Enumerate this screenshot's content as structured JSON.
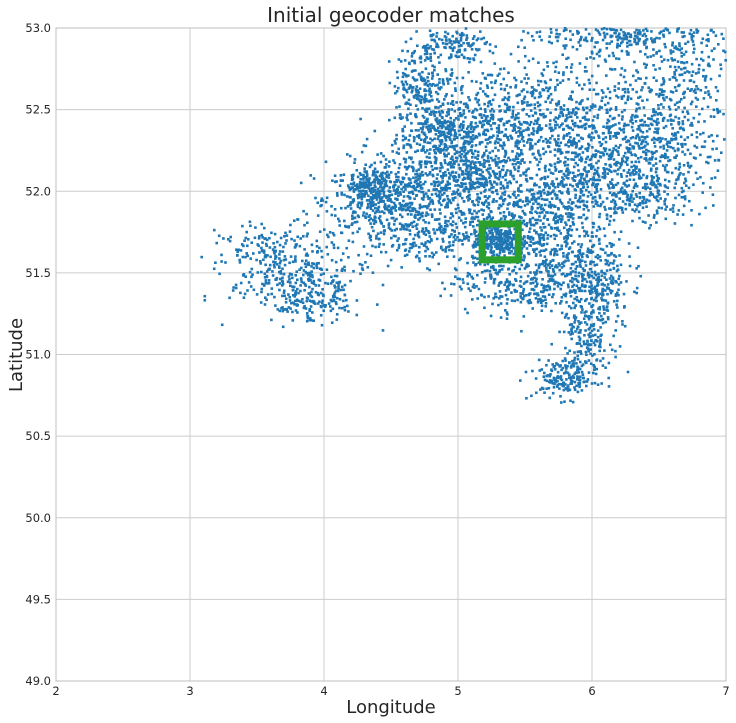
{
  "chart_data": {
    "type": "scatter",
    "title": "Initial geocoder matches",
    "xlabel": "Longitude",
    "ylabel": "Latitude",
    "xlim": [
      2,
      7
    ],
    "ylim": [
      49.0,
      53.0
    ],
    "xticks": [
      2,
      3,
      4,
      5,
      6,
      7
    ],
    "xtick_labels": [
      "2",
      "3",
      "4",
      "5",
      "6",
      "7"
    ],
    "yticks": [
      49.0,
      49.5,
      50.0,
      50.5,
      51.0,
      51.5,
      52.0,
      52.5,
      53.0
    ],
    "ytick_labels": [
      "49.0",
      "49.5",
      "50.0",
      "50.5",
      "51.0",
      "51.5",
      "52.0",
      "52.5",
      "53.0"
    ],
    "grid": true,
    "legend": false,
    "point_color": "#1f77b4",
    "highlight_color": "#2ca02c",
    "highlight_box": {
      "x0": 5.18,
      "x1": 5.45,
      "y0": 51.58,
      "y1": 51.8
    },
    "clusters": [
      {
        "cx": 4.9,
        "cy": 52.35,
        "sx": 0.18,
        "sy": 0.08,
        "n": 320
      },
      {
        "cx": 4.4,
        "cy": 51.95,
        "sx": 0.2,
        "sy": 0.1,
        "n": 360
      },
      {
        "cx": 4.8,
        "cy": 52.05,
        "sx": 0.3,
        "sy": 0.12,
        "n": 380
      },
      {
        "cx": 5.15,
        "cy": 52.08,
        "sx": 0.18,
        "sy": 0.1,
        "n": 260
      },
      {
        "cx": 4.75,
        "cy": 51.75,
        "sx": 0.3,
        "sy": 0.1,
        "n": 320
      },
      {
        "cx": 5.3,
        "cy": 51.7,
        "sx": 0.1,
        "sy": 0.07,
        "n": 260
      },
      {
        "cx": 5.55,
        "cy": 51.8,
        "sx": 0.22,
        "sy": 0.12,
        "n": 300
      },
      {
        "cx": 5.45,
        "cy": 51.45,
        "sx": 0.25,
        "sy": 0.1,
        "n": 300
      },
      {
        "cx": 5.9,
        "cy": 51.55,
        "sx": 0.18,
        "sy": 0.12,
        "n": 240
      },
      {
        "cx": 6.05,
        "cy": 51.35,
        "sx": 0.12,
        "sy": 0.12,
        "n": 160
      },
      {
        "cx": 5.95,
        "cy": 51.1,
        "sx": 0.1,
        "sy": 0.12,
        "n": 150
      },
      {
        "cx": 5.8,
        "cy": 50.85,
        "sx": 0.12,
        "sy": 0.06,
        "n": 160
      },
      {
        "cx": 3.8,
        "cy": 51.45,
        "sx": 0.25,
        "sy": 0.1,
        "n": 240
      },
      {
        "cx": 3.9,
        "cy": 51.3,
        "sx": 0.15,
        "sy": 0.05,
        "n": 100
      },
      {
        "cx": 3.65,
        "cy": 51.65,
        "sx": 0.22,
        "sy": 0.08,
        "n": 140
      },
      {
        "cx": 4.75,
        "cy": 52.65,
        "sx": 0.12,
        "sy": 0.12,
        "n": 220
      },
      {
        "cx": 4.95,
        "cy": 52.9,
        "sx": 0.14,
        "sy": 0.05,
        "n": 120
      },
      {
        "cx": 5.45,
        "cy": 52.3,
        "sx": 0.25,
        "sy": 0.15,
        "n": 260
      },
      {
        "cx": 5.8,
        "cy": 52.5,
        "sx": 0.35,
        "sy": 0.2,
        "n": 320
      },
      {
        "cx": 6.1,
        "cy": 52.2,
        "sx": 0.3,
        "sy": 0.15,
        "n": 320
      },
      {
        "cx": 6.5,
        "cy": 52.25,
        "sx": 0.3,
        "sy": 0.15,
        "n": 320
      },
      {
        "cx": 6.55,
        "cy": 52.7,
        "sx": 0.3,
        "sy": 0.18,
        "n": 320
      },
      {
        "cx": 6.3,
        "cy": 52.95,
        "sx": 0.35,
        "sy": 0.05,
        "n": 220
      },
      {
        "cx": 5.85,
        "cy": 52.0,
        "sx": 0.25,
        "sy": 0.1,
        "n": 220
      },
      {
        "cx": 6.35,
        "cy": 51.95,
        "sx": 0.25,
        "sy": 0.07,
        "n": 150
      },
      {
        "cx": 5.3,
        "cy": 52.55,
        "sx": 0.25,
        "sy": 0.12,
        "n": 160
      },
      {
        "cx": 4.35,
        "cy": 52.05,
        "sx": 0.06,
        "sy": 0.04,
        "n": 80
      }
    ]
  }
}
